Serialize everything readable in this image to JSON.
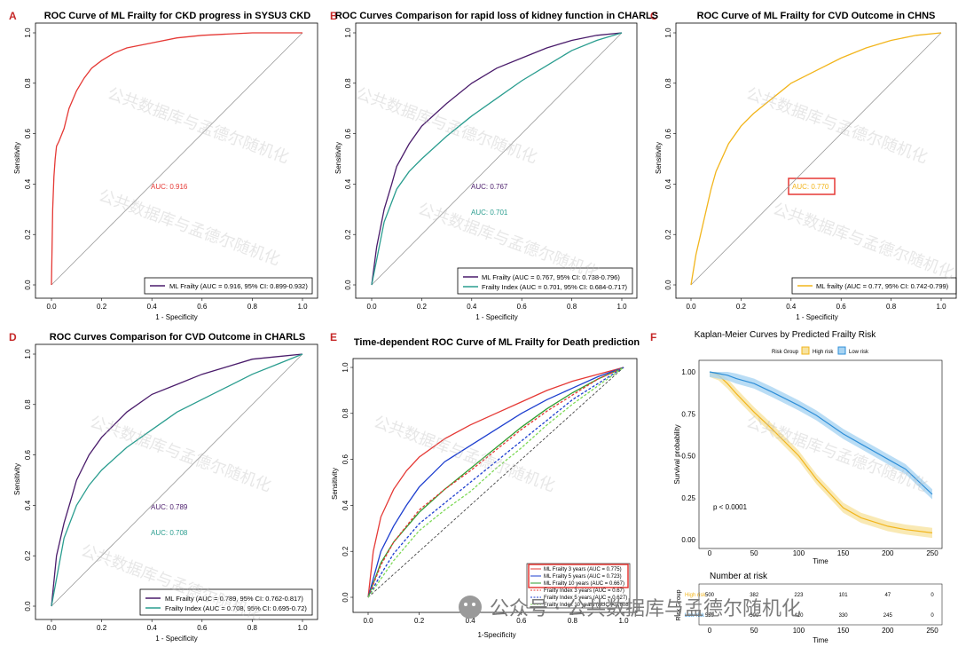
{
  "colors": {
    "ml": "#4a1c6b",
    "fi": "#2a9d8f",
    "red": "#e53935",
    "gold": "#f2b51c",
    "blue": "#2f8fd8",
    "panel": "#c62828",
    "lblue": "#1e3fcf",
    "lgreen": "#3cb521",
    "dgreen": "#2f9e2f",
    "lgreen2": "#7ed957"
  },
  "panels": {
    "A": {
      "letter": "A",
      "title": "ROC Curve of ML Frailty for CKD progress in SYSU3 CKD",
      "xlabel": "1 - Specificity",
      "ylabel": "Sensitivity",
      "auc_label": "AUC: 0.916",
      "legend": [
        "ML Frailty (AUC = 0.916, 95% CI: 0.899-0.932)"
      ]
    },
    "B": {
      "letter": "B",
      "title": "ROC Curves Comparison for rapid loss of kidney function in CHARLS",
      "xlabel": "1 - Specificity",
      "ylabel": "Sensitivity",
      "auc_labels": [
        "AUC: 0.767",
        "AUC: 0.701"
      ],
      "legend": [
        "ML Frailty (AUC = 0.767, 95% CI: 0.738-0.796)",
        "Frailty Index (AUC = 0.701, 95% CI: 0.684-0.717)"
      ]
    },
    "C": {
      "letter": "C",
      "title": "ROC Curve of ML Frailty for CVD Outcome in CHNS",
      "xlabel": "1 - Specificity",
      "ylabel": "Sensitivity",
      "auc_label": "AUC: 0.770",
      "legend": [
        "ML frailty (AUC = 0.77, 95% CI: 0.742-0.799)"
      ]
    },
    "D": {
      "letter": "D",
      "title": "ROC Curves Comparison for CVD Outcome in CHARLS",
      "xlabel": "1 - Specificity",
      "ylabel": "Sensitivity",
      "auc_labels": [
        "AUC: 0.789",
        "AUC: 0.708"
      ],
      "legend": [
        "ML Frailty (AUC = 0.789, 95% CI: 0.762-0.817)",
        "Frailty Index (AUC = 0.708, 95% CI: 0.695-0.72)"
      ]
    },
    "E": {
      "letter": "E",
      "title": "Time-dependent ROC Curve of ML Frailty for Death prediction",
      "xlabel": "1-Specificity",
      "ylabel": "Sensitivity",
      "legend": [
        "ML Frailty 3 years (AUC = 0.775)",
        "ML Frailty 5 years (AUC = 0.723)",
        "ML Frailty 10 years (AUC = 0.667)",
        "Frailty Index 3 years (AUC = 0.67)",
        "Frailty Index 5 years (AUC = 0.627)",
        "Frailty Index 10 years (AUC = 0.608)"
      ]
    },
    "F": {
      "letter": "F",
      "title": "Kaplan-Meier Curves by Predicted Frailty Risk",
      "legend_title": "Risk Group",
      "legend": [
        "High risk",
        "Low risk"
      ],
      "ylabel": "Survival probability",
      "xlabel": "Time",
      "pval": "p < 0.0001",
      "risk_title": "Number at risk",
      "risk_ylabel": "Risk Group",
      "risk_rows": [
        {
          "name": "High risk",
          "values": [
            "500",
            "382",
            "223",
            "101",
            "47",
            "0"
          ]
        },
        {
          "name": "Low risk",
          "values": [
            "559",
            "500",
            "420",
            "330",
            "245",
            "0"
          ]
        }
      ]
    }
  },
  "ticks01": [
    "0.0",
    "0.2",
    "0.4",
    "0.6",
    "0.8",
    "1.0"
  ],
  "km_yticks": [
    "0.00",
    "0.25",
    "0.50",
    "0.75",
    "1.00"
  ],
  "km_xticks": [
    "0",
    "50",
    "100",
    "150",
    "200",
    "250"
  ],
  "watermark": "公共数据库与孟德尔随机化",
  "wechat": "公众号 · 公共数据库与孟德尔随机化",
  "chart_data": [
    {
      "panel": "A",
      "type": "line",
      "xlim": [
        0,
        1
      ],
      "ylim": [
        0,
        1
      ],
      "series": [
        {
          "name": "ML Frailty",
          "x": [
            0,
            0.005,
            0.01,
            0.015,
            0.02,
            0.03,
            0.05,
            0.07,
            0.1,
            0.13,
            0.16,
            0.2,
            0.25,
            0.3,
            0.4,
            0.5,
            0.6,
            0.7,
            0.8,
            0.9,
            1.0
          ],
          "y": [
            0,
            0.3,
            0.43,
            0.5,
            0.55,
            0.57,
            0.62,
            0.7,
            0.77,
            0.82,
            0.86,
            0.89,
            0.92,
            0.94,
            0.96,
            0.98,
            0.99,
            0.995,
            1,
            1,
            1
          ]
        }
      ]
    },
    {
      "panel": "B",
      "type": "line",
      "xlim": [
        0,
        1
      ],
      "ylim": [
        0,
        1
      ],
      "series": [
        {
          "name": "ML Frailty",
          "x": [
            0,
            0.02,
            0.05,
            0.08,
            0.1,
            0.15,
            0.2,
            0.3,
            0.4,
            0.5,
            0.6,
            0.7,
            0.8,
            0.9,
            1.0
          ],
          "y": [
            0,
            0.15,
            0.3,
            0.4,
            0.47,
            0.56,
            0.63,
            0.72,
            0.8,
            0.86,
            0.9,
            0.94,
            0.97,
            0.99,
            1
          ]
        },
        {
          "name": "Frailty Index",
          "x": [
            0,
            0.05,
            0.1,
            0.15,
            0.2,
            0.3,
            0.4,
            0.5,
            0.6,
            0.7,
            0.8,
            0.9,
            1.0
          ],
          "y": [
            0,
            0.25,
            0.38,
            0.45,
            0.5,
            0.59,
            0.67,
            0.74,
            0.81,
            0.87,
            0.93,
            0.97,
            1
          ]
        }
      ]
    },
    {
      "panel": "C",
      "type": "line",
      "xlim": [
        0,
        1
      ],
      "ylim": [
        0,
        1
      ],
      "series": [
        {
          "name": "ML frailty",
          "x": [
            0,
            0.02,
            0.05,
            0.08,
            0.1,
            0.15,
            0.2,
            0.25,
            0.3,
            0.4,
            0.5,
            0.6,
            0.7,
            0.8,
            0.9,
            1.0
          ],
          "y": [
            0,
            0.12,
            0.25,
            0.38,
            0.45,
            0.56,
            0.63,
            0.68,
            0.72,
            0.8,
            0.85,
            0.9,
            0.94,
            0.97,
            0.99,
            1
          ]
        }
      ]
    },
    {
      "panel": "D",
      "type": "line",
      "xlim": [
        0,
        1
      ],
      "ylim": [
        0,
        1
      ],
      "series": [
        {
          "name": "ML Frailty",
          "x": [
            0,
            0.02,
            0.05,
            0.08,
            0.1,
            0.15,
            0.2,
            0.3,
            0.4,
            0.5,
            0.6,
            0.7,
            0.8,
            0.9,
            1.0
          ],
          "y": [
            0,
            0.2,
            0.33,
            0.43,
            0.5,
            0.6,
            0.67,
            0.77,
            0.84,
            0.88,
            0.92,
            0.95,
            0.98,
            0.99,
            1
          ]
        },
        {
          "name": "Frailty Index",
          "x": [
            0,
            0.05,
            0.1,
            0.15,
            0.2,
            0.3,
            0.4,
            0.5,
            0.6,
            0.7,
            0.8,
            0.9,
            1.0
          ],
          "y": [
            0,
            0.27,
            0.4,
            0.48,
            0.54,
            0.63,
            0.7,
            0.77,
            0.82,
            0.87,
            0.92,
            0.96,
            1
          ]
        }
      ]
    },
    {
      "panel": "E",
      "type": "line",
      "xlim": [
        0,
        1
      ],
      "ylim": [
        0,
        1
      ],
      "series": [
        {
          "name": "ML Frailty 3 years (AUC = 0.775)",
          "x": [
            0,
            0.02,
            0.05,
            0.1,
            0.15,
            0.2,
            0.3,
            0.4,
            0.5,
            0.6,
            0.7,
            0.8,
            0.9,
            1.0
          ],
          "y": [
            0,
            0.2,
            0.35,
            0.47,
            0.55,
            0.61,
            0.69,
            0.75,
            0.8,
            0.85,
            0.9,
            0.94,
            0.97,
            1
          ]
        },
        {
          "name": "ML Frailty 5 years (AUC = 0.723)",
          "x": [
            0,
            0.05,
            0.1,
            0.15,
            0.2,
            0.3,
            0.4,
            0.5,
            0.6,
            0.7,
            0.8,
            0.9,
            1.0
          ],
          "y": [
            0,
            0.2,
            0.31,
            0.4,
            0.48,
            0.59,
            0.66,
            0.73,
            0.8,
            0.86,
            0.91,
            0.96,
            1
          ]
        },
        {
          "name": "ML Frailty 10 years (AUC = 0.667)",
          "x": [
            0,
            0.05,
            0.1,
            0.2,
            0.3,
            0.4,
            0.5,
            0.6,
            0.7,
            0.8,
            0.9,
            1.0
          ],
          "y": [
            0,
            0.15,
            0.24,
            0.37,
            0.47,
            0.56,
            0.65,
            0.74,
            0.82,
            0.89,
            0.95,
            1
          ]
        },
        {
          "name": "Frailty Index 3 years (AUC = 0.67)",
          "x": [
            0,
            0.05,
            0.1,
            0.2,
            0.3,
            0.4,
            0.5,
            0.6,
            0.7,
            0.8,
            0.9,
            1.0
          ],
          "y": [
            0,
            0.14,
            0.24,
            0.38,
            0.47,
            0.55,
            0.64,
            0.73,
            0.81,
            0.88,
            0.95,
            1
          ]
        },
        {
          "name": "Frailty Index 5 years (AUC = 0.627)",
          "x": [
            0,
            0.05,
            0.1,
            0.2,
            0.3,
            0.4,
            0.5,
            0.6,
            0.7,
            0.8,
            0.9,
            1.0
          ],
          "y": [
            0,
            0.1,
            0.19,
            0.32,
            0.41,
            0.5,
            0.59,
            0.68,
            0.77,
            0.86,
            0.93,
            1
          ]
        },
        {
          "name": "Frailty Index 10 years (AUC = 0.608)",
          "x": [
            0,
            0.05,
            0.1,
            0.2,
            0.3,
            0.4,
            0.5,
            0.6,
            0.7,
            0.8,
            0.9,
            1.0
          ],
          "y": [
            0,
            0.08,
            0.16,
            0.29,
            0.38,
            0.46,
            0.56,
            0.65,
            0.75,
            0.84,
            0.92,
            1
          ]
        }
      ]
    },
    {
      "panel": "F",
      "type": "line",
      "xlim": [
        0,
        250
      ],
      "ylim": [
        0,
        1
      ],
      "series": [
        {
          "name": "High risk",
          "x": [
            0,
            10,
            20,
            30,
            50,
            70,
            100,
            120,
            150,
            170,
            200,
            220,
            250
          ],
          "y": [
            1,
            0.98,
            0.93,
            0.87,
            0.76,
            0.66,
            0.5,
            0.36,
            0.19,
            0.13,
            0.08,
            0.06,
            0.04
          ]
        },
        {
          "name": "Low risk",
          "x": [
            0,
            10,
            20,
            30,
            50,
            70,
            100,
            120,
            150,
            170,
            200,
            220,
            250
          ],
          "y": [
            1,
            0.99,
            0.98,
            0.96,
            0.93,
            0.88,
            0.8,
            0.74,
            0.63,
            0.57,
            0.48,
            0.42,
            0.27
          ]
        }
      ]
    }
  ]
}
